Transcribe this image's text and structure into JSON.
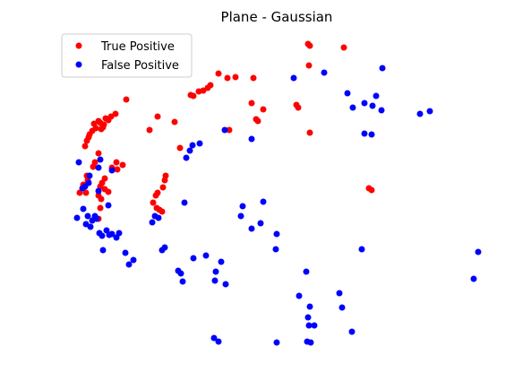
{
  "chart_data": {
    "type": "scatter",
    "title": "Plane - Gaussian",
    "xlabel": "",
    "ylabel": "",
    "axes_visible": false,
    "grid": false,
    "legend_placement": "top-left",
    "series": [
      {
        "name": "True Positive",
        "color": "#ff0000",
        "points": [
          [
            344,
            49
          ],
          [
            346,
            51
          ],
          [
            384,
            53
          ],
          [
            345,
            73
          ],
          [
            244,
            82
          ],
          [
            263,
            86
          ],
          [
            254,
            87
          ],
          [
            283,
            87
          ],
          [
            235,
            95
          ],
          [
            232,
            98
          ],
          [
            227,
            101
          ],
          [
            222,
            102
          ],
          [
            213,
            106
          ],
          [
            216,
            107
          ],
          [
            141,
            111
          ],
          [
            281,
            115
          ],
          [
            331,
            117
          ],
          [
            333,
            120
          ],
          [
            294,
            122
          ],
          [
            129,
            127
          ],
          [
            124,
            130
          ],
          [
            176,
            130
          ],
          [
            118,
            132
          ],
          [
            121,
            134
          ],
          [
            110,
            135
          ],
          [
            112,
            137
          ],
          [
            105,
            138
          ],
          [
            116,
            139
          ],
          [
            286,
            133
          ],
          [
            288,
            135
          ],
          [
            195,
            136
          ],
          [
            115,
            142
          ],
          [
            113,
            144
          ],
          [
            107,
            143
          ],
          [
            103,
            146
          ],
          [
            100,
            150
          ],
          [
            99,
            153
          ],
          [
            167,
            145
          ],
          [
            256,
            145
          ],
          [
            346,
            148
          ],
          [
            97,
            157
          ],
          [
            95,
            163
          ],
          [
            201,
            165
          ],
          [
            110,
            171
          ],
          [
            130,
            181
          ],
          [
            137,
            184
          ],
          [
            106,
            181
          ],
          [
            104,
            186
          ],
          [
            125,
            187
          ],
          [
            131,
            189
          ],
          [
            185,
            196
          ],
          [
            184,
            201
          ],
          [
            117,
            199
          ],
          [
            97,
            196
          ],
          [
            98,
            201
          ],
          [
            114,
            204
          ],
          [
            112,
            208
          ],
          [
            93,
            206
          ],
          [
            182,
            209
          ],
          [
            117,
            211
          ],
          [
            121,
            214
          ],
          [
            412,
            210
          ],
          [
            415,
            212
          ],
          [
            176,
            215
          ],
          [
            96,
            215
          ],
          [
            174,
            218
          ],
          [
            110,
            218
          ],
          [
            89,
            215
          ],
          [
            113,
            222
          ],
          [
            171,
            226
          ],
          [
            175,
            232
          ],
          [
            178,
            234
          ],
          [
            181,
            236
          ],
          [
            112,
            232
          ],
          [
            110,
            244
          ]
        ]
      },
      {
        "name": "False Positive",
        "color": "#0000ff",
        "points": [
          [
            427,
            76
          ],
          [
            362,
            81
          ],
          [
            328,
            87
          ],
          [
            388,
            104
          ],
          [
            420,
            107
          ],
          [
            407,
            115
          ],
          [
            394,
            120
          ],
          [
            416,
            118
          ],
          [
            426,
            123
          ],
          [
            469,
            127
          ],
          [
            480,
            124
          ],
          [
            407,
            149
          ],
          [
            415,
            150
          ],
          [
            251,
            145
          ],
          [
            281,
            155
          ],
          [
            223,
            160
          ],
          [
            215,
            162
          ],
          [
            212,
            168
          ],
          [
            208,
            176
          ],
          [
            112,
            178
          ],
          [
            88,
            181
          ],
          [
            110,
            187
          ],
          [
            125,
            190
          ],
          [
            100,
            196
          ],
          [
            99,
            204
          ],
          [
            95,
            208
          ],
          [
            92,
            210
          ],
          [
            110,
            213
          ],
          [
            206,
            226
          ],
          [
            271,
            230
          ],
          [
            294,
            225
          ],
          [
            121,
            229
          ],
          [
            93,
            233
          ],
          [
            269,
            241
          ],
          [
            98,
            241
          ],
          [
            86,
            243
          ],
          [
            106,
            241
          ],
          [
            108,
            244
          ],
          [
            173,
            241
          ],
          [
            177,
            243
          ],
          [
            170,
            248
          ],
          [
            291,
            249
          ],
          [
            281,
            255
          ],
          [
            96,
            250
          ],
          [
            101,
            253
          ],
          [
            103,
            246
          ],
          [
            309,
            261
          ],
          [
            111,
            260
          ],
          [
            119,
            257
          ],
          [
            125,
            261
          ],
          [
            133,
            260
          ],
          [
            122,
            262
          ],
          [
            130,
            265
          ],
          [
            114,
            263
          ],
          [
            184,
            276
          ],
          [
            181,
            279
          ],
          [
            308,
            278
          ],
          [
            404,
            278
          ],
          [
            534,
            281
          ],
          [
            115,
            279
          ],
          [
            140,
            282
          ],
          [
            149,
            290
          ],
          [
            144,
            295
          ],
          [
            230,
            285
          ],
          [
            216,
            288
          ],
          [
            247,
            292
          ],
          [
            199,
            302
          ],
          [
            202,
            305
          ],
          [
            241,
            303
          ],
          [
            342,
            303
          ],
          [
            204,
            314
          ],
          [
            240,
            313
          ],
          [
            252,
            317
          ],
          [
            529,
            311
          ],
          [
            334,
            330
          ],
          [
            379,
            327
          ],
          [
            346,
            342
          ],
          [
            382,
            343
          ],
          [
            344,
            354
          ],
          [
            345,
            363
          ],
          [
            351,
            363
          ],
          [
            393,
            370
          ],
          [
            239,
            377
          ],
          [
            244,
            381
          ],
          [
            309,
            382
          ],
          [
            343,
            381
          ],
          [
            347,
            382
          ]
        ]
      }
    ]
  }
}
